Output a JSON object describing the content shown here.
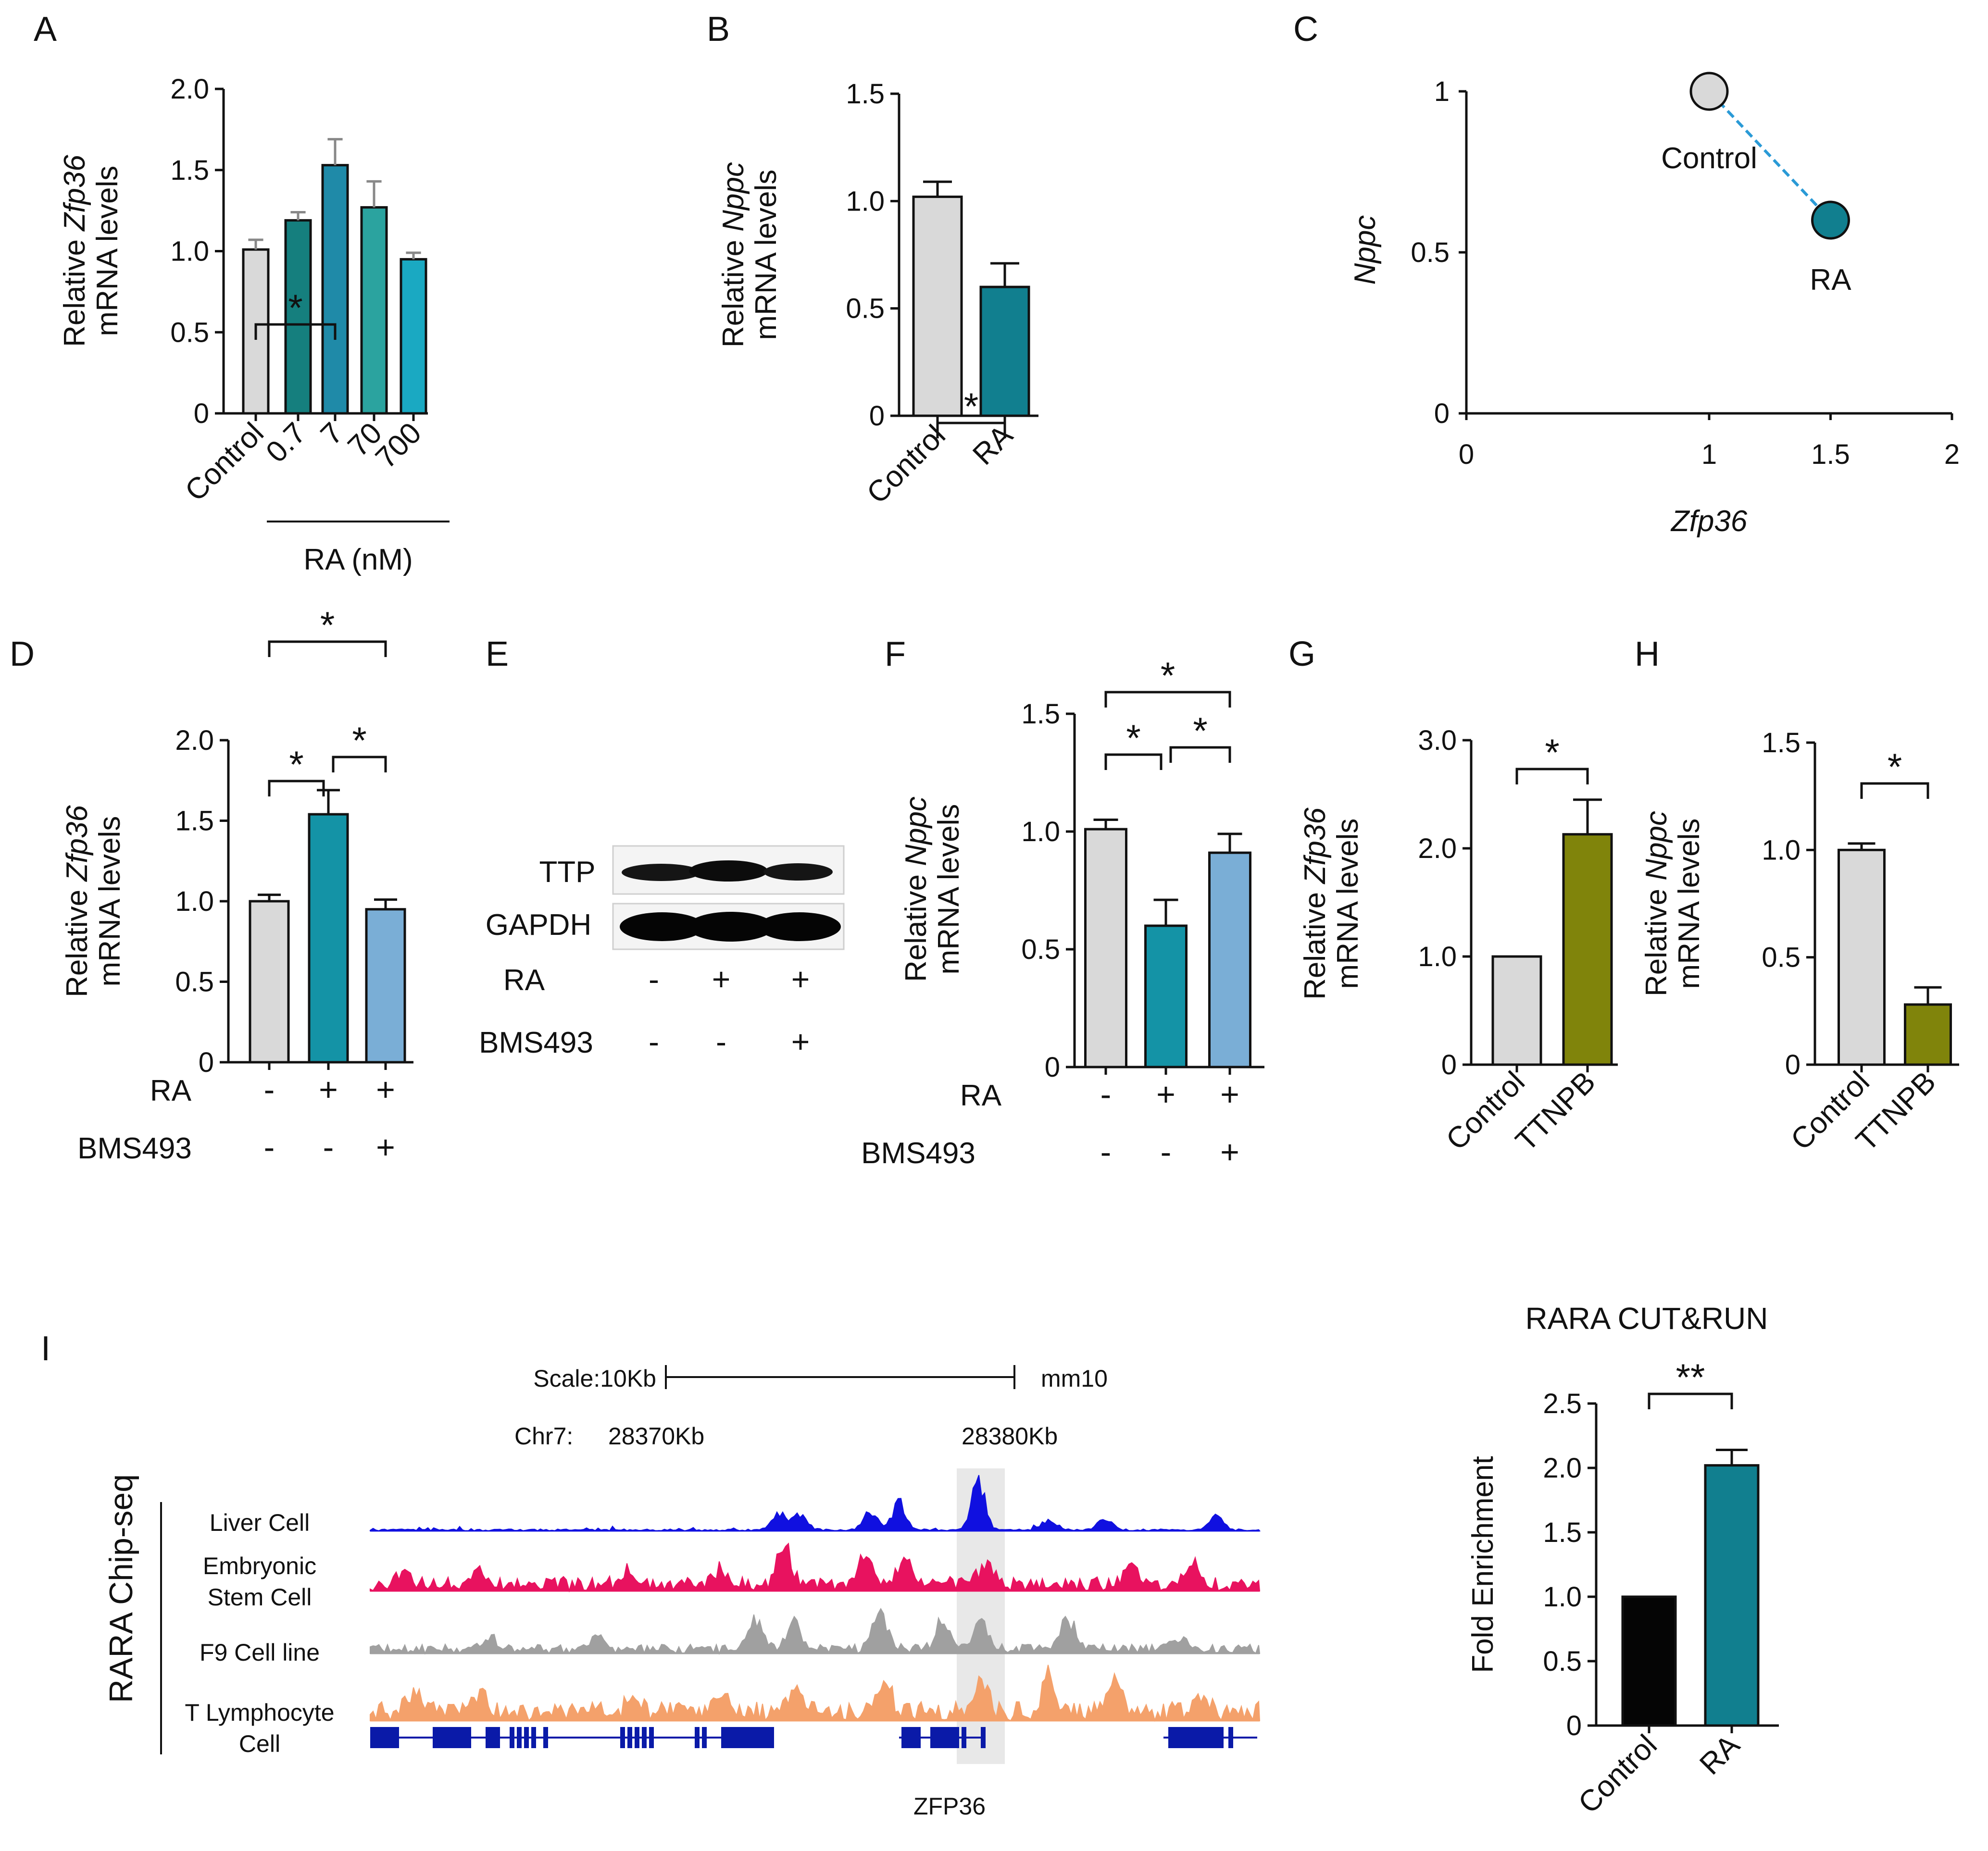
{
  "chart_data": [
    {
      "panel": "A",
      "type": "bar",
      "ylabel_lines": [
        "Relative Zfp36",
        "mRNA levels"
      ],
      "categories": [
        "Control",
        "0.7",
        "7",
        "70",
        "700"
      ],
      "values": [
        1.01,
        1.19,
        1.53,
        1.27,
        0.95
      ],
      "errors": [
        0.06,
        0.05,
        0.16,
        0.16,
        0.04
      ],
      "colors": [
        "#d9d9d9",
        "#157f7e",
        "#1f8aa8",
        "#2ba39f",
        "#1aa9c2"
      ],
      "yticks": [
        "0",
        "0.5",
        "1.0",
        "1.5",
        "2.0"
      ],
      "ylim": [
        0,
        2.0
      ],
      "group_label": "RA (nM)",
      "significance": [
        {
          "from": 0,
          "to": 2,
          "label": "*"
        }
      ]
    },
    {
      "panel": "B",
      "type": "bar",
      "ylabel_lines": [
        "Relative Nppc",
        "mRNA levels"
      ],
      "categories": [
        "Control",
        "RA"
      ],
      "values": [
        1.02,
        0.6
      ],
      "errors": [
        0.07,
        0.11
      ],
      "colors": [
        "#d9d9d9",
        "#117f8f"
      ],
      "yticks": [
        "0",
        "0.5",
        "1.0",
        "1.5"
      ],
      "ylim": [
        0,
        1.5
      ],
      "significance": [
        {
          "from": 0,
          "to": 1,
          "label": "*"
        }
      ]
    },
    {
      "panel": "C",
      "type": "scatter",
      "xlabel": "Zfp36",
      "ylabel": "Nppc",
      "points": [
        {
          "label": "Control",
          "x": 1.0,
          "y": 1.0,
          "color": "#d9d9d9"
        },
        {
          "label": "RA",
          "x": 1.5,
          "y": 0.6,
          "color": "#117f8f"
        }
      ],
      "xticks": [
        "0",
        "1",
        "1.5",
        "2"
      ],
      "yticks": [
        "0",
        "0.5",
        "1"
      ],
      "xlim": [
        0,
        2
      ],
      "ylim": [
        0,
        1
      ]
    },
    {
      "panel": "D",
      "type": "bar",
      "ylabel_lines": [
        "Relative  Zfp36",
        "mRNA levels"
      ],
      "values": [
        1.0,
        1.54,
        0.95
      ],
      "errors": [
        0.04,
        0.15,
        0.06
      ],
      "colors": [
        "#d9d9d9",
        "#1493a6",
        "#7aaed6"
      ],
      "yticks": [
        "0",
        "0.5",
        "1.0",
        "1.5",
        "2.0"
      ],
      "ylim": [
        0,
        2.0
      ],
      "treatments": [
        {
          "name": "RA",
          "signs": [
            "-",
            "+",
            "+"
          ]
        },
        {
          "name": "BMS493",
          "signs": [
            "-",
            "-",
            "+"
          ]
        }
      ],
      "significance": [
        {
          "from": 0,
          "to": 1,
          "label": "*"
        },
        {
          "from": 1,
          "to": 2,
          "label": "*"
        },
        {
          "from": 0,
          "to": 2,
          "label": "*"
        }
      ]
    },
    {
      "panel": "F",
      "type": "bar",
      "ylabel_lines": [
        "Relative  Nppc",
        "mRNA levels"
      ],
      "values": [
        1.01,
        0.6,
        0.91
      ],
      "errors": [
        0.04,
        0.11,
        0.08
      ],
      "colors": [
        "#d9d9d9",
        "#1493a6",
        "#7aaed6"
      ],
      "yticks": [
        "0",
        "0.5",
        "1.0",
        "1.5"
      ],
      "ylim": [
        0,
        1.5
      ],
      "treatments": [
        {
          "name": "RA",
          "signs": [
            "-",
            "+",
            "+"
          ]
        },
        {
          "name": "BMS493",
          "signs": [
            "-",
            "-",
            "+"
          ]
        }
      ],
      "significance": [
        {
          "from": 0,
          "to": 1,
          "label": "*"
        },
        {
          "from": 1,
          "to": 2,
          "label": "*"
        },
        {
          "from": 0,
          "to": 2,
          "label": "*"
        }
      ]
    },
    {
      "panel": "G",
      "type": "bar",
      "ylabel_lines": [
        "Relative Zfp36",
        "mRNA levels"
      ],
      "categories": [
        "Control",
        "TTNPB"
      ],
      "values": [
        1.0,
        2.13
      ],
      "errors": [
        0,
        0.32
      ],
      "colors": [
        "#d9d9d9",
        "#80840b"
      ],
      "yticks": [
        "0",
        "1.0",
        "2.0",
        "3.0"
      ],
      "ylim": [
        0,
        3.0
      ],
      "significance": [
        {
          "from": 0,
          "to": 1,
          "label": "*"
        }
      ]
    },
    {
      "panel": "H",
      "type": "bar",
      "ylabel_lines": [
        "Relative Nppc",
        "mRNA levels"
      ],
      "categories": [
        "Control",
        "TTNPB"
      ],
      "values": [
        1.0,
        0.28
      ],
      "errors": [
        0.03,
        0.08
      ],
      "colors": [
        "#d9d9d9",
        "#80840b"
      ],
      "yticks": [
        "0",
        "0.5",
        "1.0",
        "1.5"
      ],
      "ylim": [
        0,
        1.5
      ],
      "significance": [
        {
          "from": 0,
          "to": 1,
          "label": "*"
        }
      ]
    },
    {
      "panel": "I-right",
      "type": "bar",
      "title": "RARA CUT&RUN",
      "ylabel_lines": [
        "Fold Enrichment"
      ],
      "categories": [
        "Control",
        "RA"
      ],
      "values": [
        1.0,
        2.02
      ],
      "errors": [
        0,
        0.12
      ],
      "colors": [
        "#050505",
        "#117f8f"
      ],
      "yticks": [
        "0",
        "0.5",
        "1.0",
        "1.5",
        "2.0",
        "2.5"
      ],
      "ylim": [
        0,
        2.5
      ],
      "significance": [
        {
          "from": 0,
          "to": 1,
          "label": "**"
        }
      ]
    }
  ],
  "panel_letters": [
    "A",
    "B",
    "C",
    "D",
    "E",
    "F",
    "G",
    "H",
    "I"
  ],
  "blot": {
    "rows": [
      "TTP",
      "GAPDH"
    ],
    "treatments": [
      {
        "name": "RA",
        "signs": [
          "-",
          "+",
          "+"
        ]
      },
      {
        "name": "BMS493",
        "signs": [
          "-",
          "-",
          "+"
        ]
      }
    ]
  },
  "genome": {
    "scale_label": "Scale:10Kb",
    "assembly": "mm10",
    "chrom_label": "Chr7:",
    "coord_left": "28370Kb",
    "coord_right": "28380Kb",
    "side_label": "RARA Chip-seq",
    "gene_label": "ZFP36",
    "tracks": [
      {
        "lines": [
          "Liver Cell"
        ],
        "color": "#1010e0"
      },
      {
        "lines": [
          "Embryonic",
          "Stem Cell"
        ],
        "color": "#e8125f"
      },
      {
        "lines": [
          "F9 Cell line"
        ],
        "color": "#a0a0a0"
      },
      {
        "lines": [
          "T Lymphocyte",
          "Cell"
        ],
        "color": "#f4a16b"
      }
    ]
  }
}
